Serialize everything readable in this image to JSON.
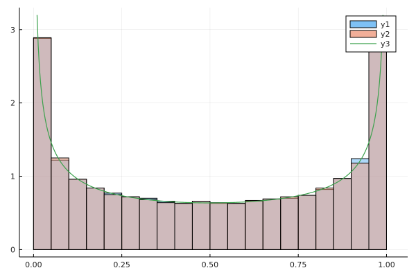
{
  "chart_data": {
    "type": "bar",
    "title": "",
    "xlabel": "",
    "ylabel": "",
    "xlim": [
      -0.04,
      1.06
    ],
    "ylim": [
      -0.1,
      3.3
    ],
    "grid": true,
    "legend_position": "top-right",
    "bin_edges": [
      0.0,
      0.05,
      0.1,
      0.15,
      0.2,
      0.25,
      0.3,
      0.35,
      0.4,
      0.45,
      0.5,
      0.55,
      0.6,
      0.65,
      0.7,
      0.75,
      0.8,
      0.85,
      0.9,
      0.95,
      1.0
    ],
    "x_ticks": [
      {
        "value": 0.0,
        "label": "0.00"
      },
      {
        "value": 0.25,
        "label": "0.25"
      },
      {
        "value": 0.5,
        "label": "0.50"
      },
      {
        "value": 0.75,
        "label": "0.75"
      },
      {
        "value": 1.0,
        "label": "1.00"
      }
    ],
    "y_ticks": [
      {
        "value": 0,
        "label": "0"
      },
      {
        "value": 1,
        "label": "1"
      },
      {
        "value": 2,
        "label": "2"
      },
      {
        "value": 3,
        "label": "3"
      }
    ],
    "series": [
      {
        "name": "y1",
        "kind": "histogram",
        "color": "#5eb2f2",
        "values": [
          2.88,
          1.22,
          0.96,
          0.84,
          0.77,
          0.72,
          0.7,
          0.66,
          0.63,
          0.66,
          0.63,
          0.63,
          0.66,
          0.69,
          0.7,
          0.74,
          0.82,
          0.97,
          1.24,
          2.85
        ]
      },
      {
        "name": "y2",
        "kind": "histogram",
        "color": "#ef9b7f",
        "values": [
          2.89,
          1.25,
          0.96,
          0.84,
          0.75,
          0.72,
          0.68,
          0.64,
          0.63,
          0.66,
          0.64,
          0.63,
          0.67,
          0.69,
          0.72,
          0.74,
          0.84,
          0.97,
          1.18,
          2.8
        ]
      },
      {
        "name": "y3",
        "kind": "line",
        "color": "#3ba14c",
        "function": "1/(pi*sqrt(x*(1-x)))",
        "x_range": [
          0.01,
          0.99
        ]
      }
    ]
  }
}
